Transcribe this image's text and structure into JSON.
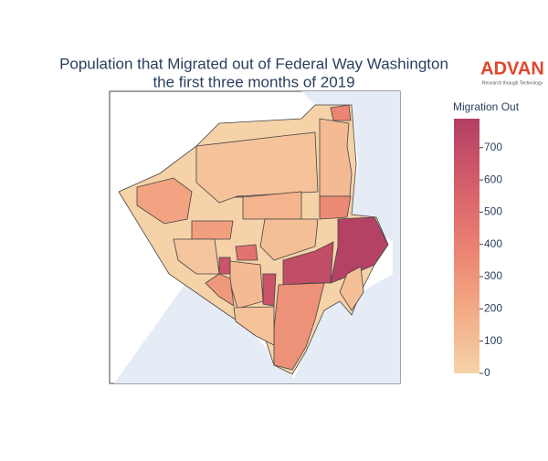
{
  "chart_data": {
    "type": "choropleth",
    "title": [
      "Population that Migrated out of Federal Way Washington",
      "the first three months of 2019"
    ],
    "logo": "ADVAN",
    "logo_tagline": "Research through Technology",
    "colorbar_title": "Migration Out",
    "zlim": [
      0,
      790
    ],
    "zticks": [
      0,
      100,
      200,
      300,
      400,
      500,
      600,
      700
    ],
    "colorscale": [
      "#f6d2a9",
      "#f3aa84",
      "#ea8171",
      "#d55d6a",
      "#b13f64"
    ],
    "values": [
      770,
      700,
      320,
      700,
      650,
      650,
      480,
      120,
      380,
      230,
      250,
      350,
      80,
      150,
      100,
      90,
      60,
      120,
      280,
      80
    ]
  }
}
